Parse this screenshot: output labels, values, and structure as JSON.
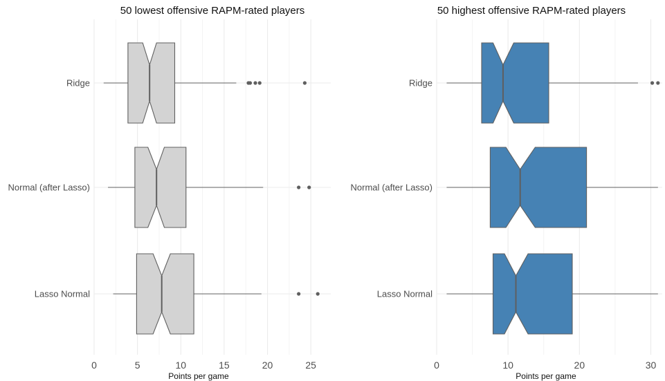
{
  "chart_data": [
    {
      "type": "boxplot",
      "orientation": "horizontal",
      "notched": true,
      "title": "50 lowest offensive RAPM-rated players",
      "xlabel": "Points per game",
      "ylabel": "",
      "xlim": [
        0,
        27.3
      ],
      "xticks": [
        0,
        5,
        10,
        15,
        20,
        25
      ],
      "grid": true,
      "fill_color": "#d3d3d3",
      "categories": [
        "Ridge",
        "Normal (after Lasso)",
        "Lasso Normal"
      ],
      "boxes": [
        {
          "category": "Ridge",
          "whisker_low": 1.1,
          "q1": 3.9,
          "median": 6.4,
          "q3": 9.3,
          "whisker_high": 16.4,
          "notch_low": 5.6,
          "notch_high": 7.2,
          "outliers": [
            17.8,
            18.0,
            18.6,
            19.1,
            24.3
          ]
        },
        {
          "category": "Normal (after Lasso)",
          "whisker_low": 1.6,
          "q1": 4.7,
          "median": 7.2,
          "q3": 10.6,
          "whisker_high": 19.5,
          "notch_low": 6.2,
          "notch_high": 8.1,
          "outliers": [
            23.6,
            24.8
          ]
        },
        {
          "category": "Lasso Normal",
          "whisker_low": 2.2,
          "q1": 4.9,
          "median": 7.8,
          "q3": 11.5,
          "whisker_high": 19.3,
          "notch_low": 6.8,
          "notch_high": 8.8,
          "outliers": [
            23.6,
            25.8
          ]
        }
      ]
    },
    {
      "type": "boxplot",
      "orientation": "horizontal",
      "notched": true,
      "title": "50 highest offensive RAPM-rated players",
      "xlabel": "Points per game",
      "ylabel": "",
      "xlim": [
        0,
        31.6
      ],
      "xticks": [
        0,
        10,
        20,
        30
      ],
      "grid": true,
      "fill_color": "#4682b4",
      "categories": [
        "Ridge",
        "Normal (after Lasso)",
        "Lasso Normal"
      ],
      "boxes": [
        {
          "category": "Ridge",
          "whisker_low": 1.4,
          "q1": 6.3,
          "median": 9.3,
          "q3": 15.7,
          "whisker_high": 28.2,
          "notch_low": 7.9,
          "notch_high": 10.8,
          "outliers": [
            30.2,
            31.0
          ]
        },
        {
          "category": "Normal (after Lasso)",
          "whisker_low": 1.4,
          "q1": 7.5,
          "median": 11.7,
          "q3": 21.0,
          "whisker_high": 31.0,
          "notch_low": 9.7,
          "notch_high": 13.8,
          "outliers": []
        },
        {
          "category": "Lasso Normal",
          "whisker_low": 1.4,
          "q1": 7.9,
          "median": 11.1,
          "q3": 19.0,
          "whisker_high": 31.0,
          "notch_low": 9.5,
          "notch_high": 12.8,
          "outliers": []
        }
      ]
    }
  ]
}
